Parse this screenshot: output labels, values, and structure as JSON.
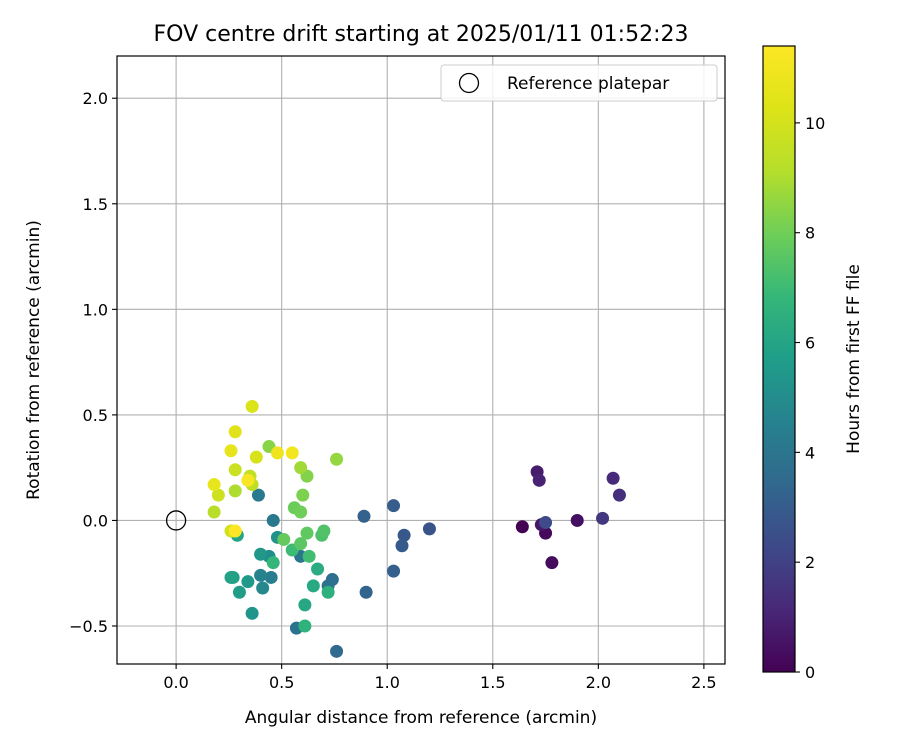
{
  "chart_data": {
    "type": "scatter",
    "title": "FOV centre drift starting at 2025/01/11 01:52:23",
    "xlabel": "Angular distance from reference (arcmin)",
    "ylabel": "Rotation from reference (arcmin)",
    "xlim": [
      -0.28,
      2.6
    ],
    "ylim": [
      -0.68,
      2.2
    ],
    "xticks": [
      "0.0",
      "0.5",
      "1.0",
      "1.5",
      "2.0",
      "2.5"
    ],
    "yticks": [
      "−0.5",
      "0.0",
      "0.5",
      "1.0",
      "1.5",
      "2.0"
    ],
    "grid": true,
    "legend": {
      "placement": "top-right",
      "entries": [
        {
          "label": "Reference platepar",
          "x": 0.0,
          "y": 0.0
        }
      ]
    },
    "colorbar": {
      "label": "Hours from first FF file",
      "colormap": "viridis",
      "range": [
        0,
        11.4
      ],
      "ticks": [
        "0",
        "2",
        "4",
        "6",
        "8",
        "10"
      ]
    },
    "points": [
      {
        "x": 1.64,
        "y": -0.03,
        "c": 0.0
      },
      {
        "x": 1.75,
        "y": -0.06,
        "c": 0.2
      },
      {
        "x": 1.78,
        "y": -0.2,
        "c": 0.3
      },
      {
        "x": 1.9,
        "y": 0.0,
        "c": 0.4
      },
      {
        "x": 1.73,
        "y": -0.02,
        "c": 0.6
      },
      {
        "x": 1.71,
        "y": 0.23,
        "c": 0.8
      },
      {
        "x": 1.72,
        "y": 0.19,
        "c": 1.0
      },
      {
        "x": 2.07,
        "y": 0.2,
        "c": 1.2
      },
      {
        "x": 2.1,
        "y": 0.12,
        "c": 1.4
      },
      {
        "x": 2.02,
        "y": 0.01,
        "c": 1.7
      },
      {
        "x": 1.75,
        "y": -0.01,
        "c": 2.3
      },
      {
        "x": 1.2,
        "y": -0.04,
        "c": 2.6
      },
      {
        "x": 1.08,
        "y": -0.07,
        "c": 2.8
      },
      {
        "x": 1.07,
        "y": -0.12,
        "c": 2.9
      },
      {
        "x": 1.03,
        "y": 0.07,
        "c": 3.0
      },
      {
        "x": 1.03,
        "y": -0.24,
        "c": 3.1
      },
      {
        "x": 0.89,
        "y": 0.02,
        "c": 3.2
      },
      {
        "x": 0.9,
        "y": -0.34,
        "c": 3.3
      },
      {
        "x": 0.76,
        "y": -0.62,
        "c": 3.5
      },
      {
        "x": 0.74,
        "y": -0.28,
        "c": 3.7
      },
      {
        "x": 0.72,
        "y": -0.31,
        "c": 3.8
      },
      {
        "x": 0.57,
        "y": -0.51,
        "c": 3.9
      },
      {
        "x": 0.59,
        "y": -0.17,
        "c": 4.0
      },
      {
        "x": 0.46,
        "y": 0.0,
        "c": 4.1
      },
      {
        "x": 0.39,
        "y": 0.12,
        "c": 4.2
      },
      {
        "x": 0.45,
        "y": -0.27,
        "c": 4.4
      },
      {
        "x": 0.4,
        "y": -0.26,
        "c": 4.6
      },
      {
        "x": 0.41,
        "y": -0.32,
        "c": 4.8
      },
      {
        "x": 0.44,
        "y": -0.17,
        "c": 5.0
      },
      {
        "x": 0.48,
        "y": -0.08,
        "c": 5.2
      },
      {
        "x": 0.36,
        "y": -0.44,
        "c": 5.3
      },
      {
        "x": 0.4,
        "y": -0.16,
        "c": 5.4
      },
      {
        "x": 0.34,
        "y": -0.29,
        "c": 5.5
      },
      {
        "x": 0.3,
        "y": -0.34,
        "c": 5.6
      },
      {
        "x": 0.27,
        "y": -0.27,
        "c": 5.8
      },
      {
        "x": 0.26,
        "y": -0.27,
        "c": 5.9
      },
      {
        "x": 0.29,
        "y": -0.07,
        "c": 6.0
      },
      {
        "x": 0.61,
        "y": -0.4,
        "c": 6.1
      },
      {
        "x": 0.65,
        "y": -0.31,
        "c": 6.2
      },
      {
        "x": 0.67,
        "y": -0.23,
        "c": 6.3
      },
      {
        "x": 0.72,
        "y": -0.34,
        "c": 6.5
      },
      {
        "x": 0.61,
        "y": -0.5,
        "c": 6.6
      },
      {
        "x": 0.46,
        "y": -0.2,
        "c": 6.8
      },
      {
        "x": 0.55,
        "y": -0.14,
        "c": 7.0
      },
      {
        "x": 0.63,
        "y": -0.17,
        "c": 7.1
      },
      {
        "x": 0.69,
        "y": -0.07,
        "c": 7.3
      },
      {
        "x": 0.7,
        "y": -0.05,
        "c": 7.4
      },
      {
        "x": 0.59,
        "y": -0.11,
        "c": 7.6
      },
      {
        "x": 0.62,
        "y": -0.06,
        "c": 7.7
      },
      {
        "x": 0.51,
        "y": -0.09,
        "c": 7.8
      },
      {
        "x": 0.56,
        "y": 0.06,
        "c": 7.9
      },
      {
        "x": 0.59,
        "y": 0.04,
        "c": 8.0
      },
      {
        "x": 0.6,
        "y": 0.12,
        "c": 8.2
      },
      {
        "x": 0.62,
        "y": 0.21,
        "c": 8.3
      },
      {
        "x": 0.44,
        "y": 0.35,
        "c": 8.4
      },
      {
        "x": 0.76,
        "y": 0.29,
        "c": 8.6
      },
      {
        "x": 0.59,
        "y": 0.25,
        "c": 8.8
      },
      {
        "x": 0.28,
        "y": 0.14,
        "c": 9.0
      },
      {
        "x": 0.18,
        "y": 0.04,
        "c": 9.2
      },
      {
        "x": 0.36,
        "y": 0.17,
        "c": 9.4
      },
      {
        "x": 0.35,
        "y": 0.21,
        "c": 9.5
      },
      {
        "x": 0.28,
        "y": 0.24,
        "c": 9.7
      },
      {
        "x": 0.2,
        "y": 0.12,
        "c": 9.8
      },
      {
        "x": 0.26,
        "y": -0.05,
        "c": 9.9
      },
      {
        "x": 0.38,
        "y": 0.3,
        "c": 10.1
      },
      {
        "x": 0.36,
        "y": 0.54,
        "c": 10.2
      },
      {
        "x": 0.28,
        "y": 0.42,
        "c": 10.4
      },
      {
        "x": 0.26,
        "y": 0.33,
        "c": 10.6
      },
      {
        "x": 0.18,
        "y": 0.17,
        "c": 10.7
      },
      {
        "x": 0.48,
        "y": 0.32,
        "c": 10.9
      },
      {
        "x": 0.55,
        "y": 0.32,
        "c": 11.0
      },
      {
        "x": 0.34,
        "y": 0.19,
        "c": 11.2
      },
      {
        "x": 0.28,
        "y": -0.05,
        "c": 11.4
      }
    ]
  }
}
